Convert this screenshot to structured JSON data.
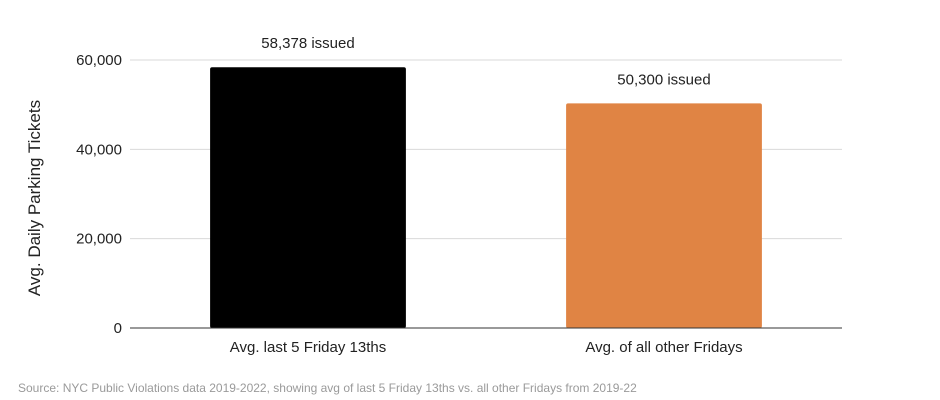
{
  "chart_data": {
    "type": "bar",
    "categories": [
      "Avg. last 5 Friday 13ths",
      "Avg. of all other Fridays"
    ],
    "values": [
      58378,
      50300
    ],
    "data_labels": [
      "58,378 issued",
      "50,300 issued"
    ],
    "colors": [
      "#000000",
      "#e08444"
    ],
    "title": "",
    "xlabel": "",
    "ylabel": "Avg. Daily Parking Tickets",
    "ylim": [
      0,
      60000
    ],
    "yticks": [
      0,
      20000,
      40000,
      60000
    ],
    "ytick_labels": [
      "0",
      "20,000",
      "40,000",
      "60,000"
    ],
    "grid": true,
    "legend": "none"
  },
  "source_note": "Source: NYC Public Violations data 2019-2022, showing avg of last 5 Friday 13ths vs. all other Fridays from 2019-22"
}
